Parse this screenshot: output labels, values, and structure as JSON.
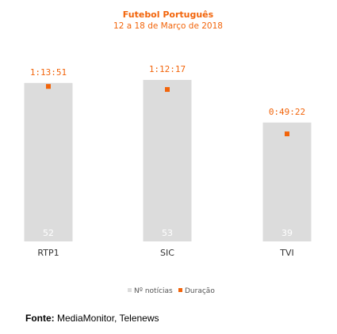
{
  "chart_data": {
    "type": "bar",
    "title": "Futebol Português",
    "subtitle": "12 a 18 de Março de 2018",
    "categories": [
      "RTP1",
      "SIC",
      "TVI"
    ],
    "series": [
      {
        "name": "Nº notícias",
        "values": [
          52,
          53,
          39
        ],
        "color": "#dcdcdc"
      },
      {
        "name": "Duração",
        "values": [
          "1:13:51",
          "1:12:17",
          "0:49:22"
        ],
        "color": "#f2640a"
      }
    ],
    "ylim": [
      0,
      55
    ],
    "grid": false,
    "legend": "bottom-center"
  },
  "source": {
    "label": "Fonte:",
    "text": "MediaMonitor, Telenews"
  }
}
